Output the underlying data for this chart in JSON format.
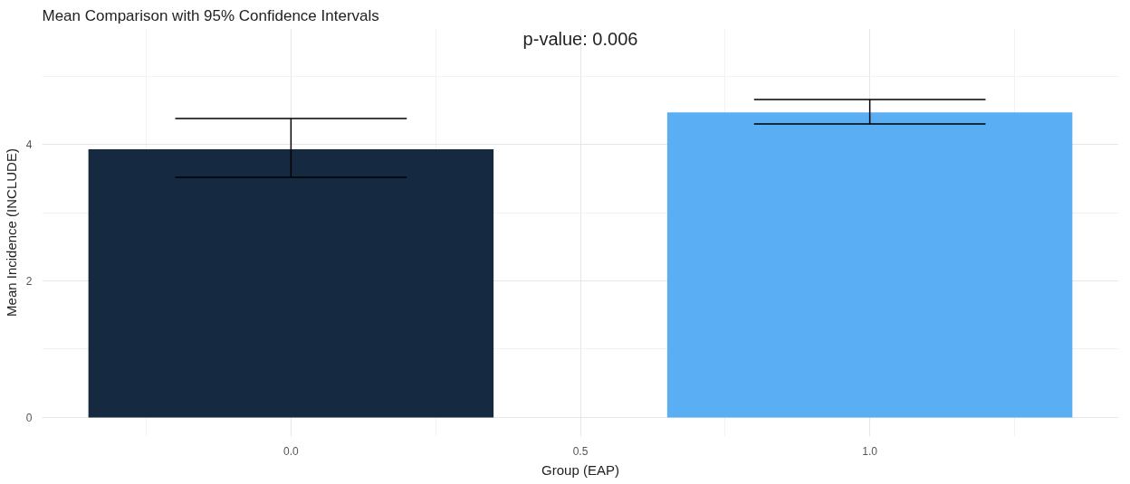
{
  "chart_data": {
    "type": "bar",
    "title": "Mean Comparison with 95% Confidence Intervals",
    "xlabel": "Group (EAP)",
    "ylabel": "Mean Incidence (INCLUDE)",
    "x": [
      0,
      1
    ],
    "values": [
      3.93,
      4.47
    ],
    "colors": [
      "#152a40",
      "#5aaef3"
    ],
    "errors": [
      [
        3.52,
        4.38
      ],
      [
        4.3,
        4.66
      ]
    ],
    "annotations": [
      "p-value: 0.006"
    ],
    "xlim": [
      -0.43,
      1.43
    ],
    "ylim": [
      -0.28,
      5.7
    ],
    "xticks": [
      {
        "value": 0,
        "label": "0.0"
      },
      {
        "value": 0.5,
        "label": "0.5"
      },
      {
        "value": 1,
        "label": "1.0"
      }
    ],
    "yticks": [
      0,
      2,
      4
    ],
    "grid": true
  }
}
